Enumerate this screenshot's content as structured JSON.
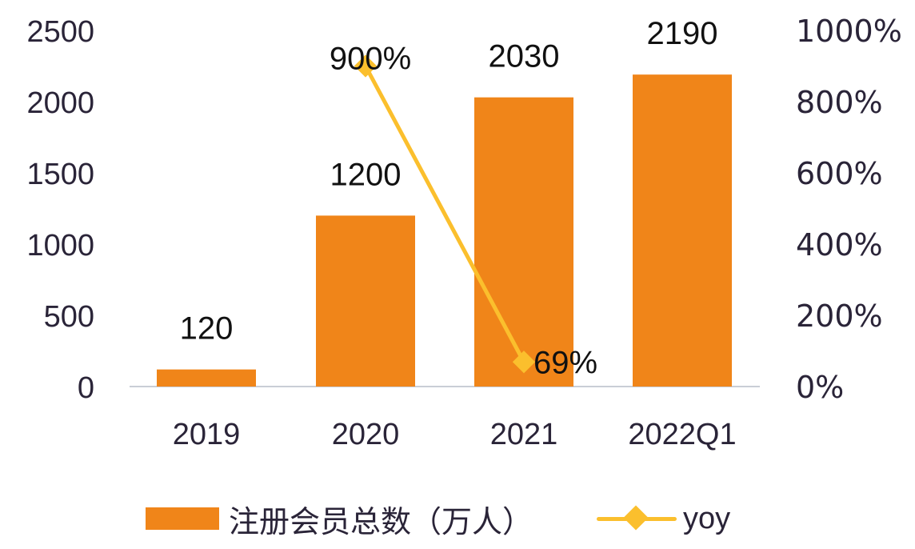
{
  "chart_data": {
    "type": "bar",
    "title": "",
    "categories": [
      "2019",
      "2020",
      "2021",
      "2022Q1"
    ],
    "series": [
      {
        "name": "注册会员总数（万人）",
        "type": "bar",
        "axis": "left",
        "color": "#f08519",
        "values": [
          120,
          1200,
          2030,
          2190
        ]
      },
      {
        "name": "yoy",
        "type": "line",
        "axis": "right",
        "color": "#fbbf2d",
        "marker": "diamond",
        "x": [
          "2020",
          "2021"
        ],
        "values": [
          900,
          69
        ]
      }
    ],
    "left_axis": {
      "ylim": [
        0,
        2500
      ],
      "ticks": [
        "0",
        "500",
        "1000",
        "1500",
        "2000",
        "2500"
      ]
    },
    "right_axis": {
      "ylim": [
        0,
        1000
      ],
      "ticks": [
        "0%",
        "200%",
        "400%",
        "600%",
        "800%",
        "1000%"
      ]
    },
    "bar_labels": [
      "120",
      "1200",
      "2030",
      "2190"
    ],
    "line_labels": [
      "900%",
      "69%"
    ],
    "legend_position": "bottom",
    "grid": false
  },
  "legend": {
    "bar_label": "注册会员总数（万人）",
    "line_label": "yoy"
  }
}
